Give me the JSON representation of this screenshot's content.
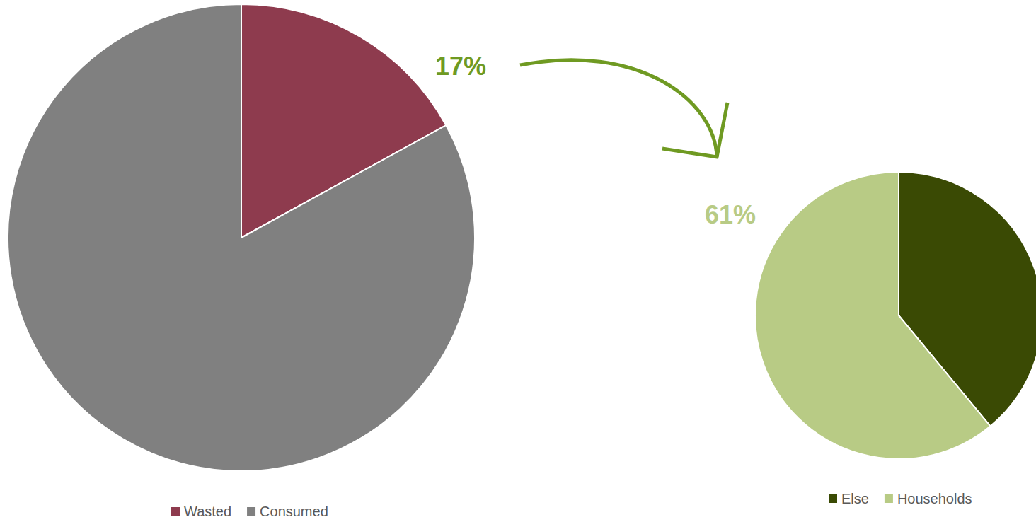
{
  "chart_data": [
    {
      "type": "pie",
      "categories": [
        "Wasted",
        "Consumed"
      ],
      "values": [
        17,
        83
      ],
      "value_labels": [
        "17%",
        null
      ],
      "colors": [
        "#8e3b4e",
        "#808080"
      ],
      "legend": "bottom"
    },
    {
      "type": "pie",
      "categories": [
        "Else",
        "Households"
      ],
      "values": [
        39,
        61
      ],
      "value_labels": [
        null,
        "61%"
      ],
      "colors": [
        "#3a4a04",
        "#b8cb85"
      ],
      "legend": "bottom"
    }
  ]
}
